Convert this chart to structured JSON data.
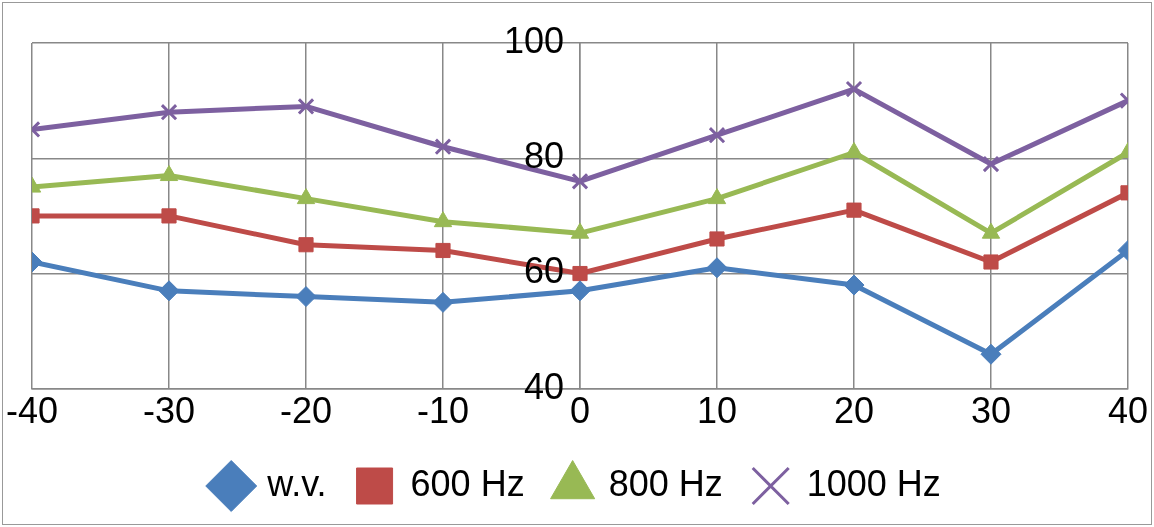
{
  "chart_data": {
    "type": "line",
    "x": [
      -40,
      -30,
      -20,
      -10,
      0,
      10,
      20,
      30,
      40
    ],
    "series": [
      {
        "name": "w.v.",
        "color": "#4a7ebb",
        "marker": "diamond",
        "values": [
          62,
          57,
          56,
          55,
          57,
          61,
          58,
          46,
          64
        ]
      },
      {
        "name": "600 Hz",
        "color": "#be4b48",
        "marker": "square",
        "values": [
          70,
          70,
          65,
          64,
          60,
          66,
          71,
          62,
          74
        ]
      },
      {
        "name": "800 Hz",
        "color": "#98b954",
        "marker": "triangle",
        "values": [
          75,
          77,
          73,
          69,
          67,
          73,
          81,
          67,
          81
        ]
      },
      {
        "name": "1000 Hz",
        "color": "#7d60a0",
        "marker": "cross",
        "values": [
          85,
          88,
          89,
          82,
          76,
          84,
          92,
          79,
          90
        ]
      }
    ],
    "xlim": [
      -40,
      40
    ],
    "xticks": [
      -40,
      -30,
      -20,
      -10,
      0,
      10,
      20,
      30,
      40
    ],
    "ylim": [
      40,
      100
    ],
    "yticks": [
      40,
      60,
      80,
      100
    ],
    "grid": true,
    "legend": "bottom"
  }
}
